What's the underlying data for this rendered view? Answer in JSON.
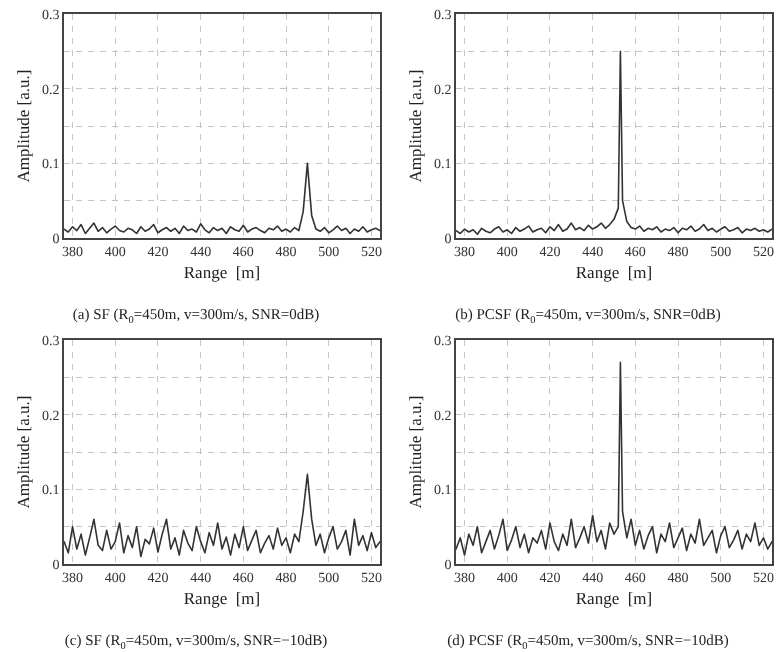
{
  "chart_data": [
    {
      "type": "line",
      "title": "(a) SF (R$_{0}$=450m, v=300m/s, SNR=0dB)",
      "xlabel": "Range  [m]",
      "ylabel": "Amplitude [a.u.]",
      "grid": true,
      "xlim": [
        376,
        524
      ],
      "xticks": [
        380,
        400,
        420,
        440,
        460,
        480,
        500,
        520
      ],
      "ylim": [
        0,
        0.3
      ],
      "yticks": [
        0,
        {
          "value": 0.05,
          "label": null
        },
        0.1,
        {
          "value": 0.15,
          "label": null
        },
        0.2,
        {
          "value": 0.25,
          "label": null
        },
        0.3
      ],
      "x": [
        376,
        378,
        380,
        382,
        384,
        386,
        388,
        390,
        392,
        394,
        396,
        398,
        400,
        402,
        404,
        406,
        408,
        410,
        412,
        414,
        416,
        418,
        420,
        422,
        424,
        426,
        428,
        430,
        432,
        434,
        436,
        438,
        440,
        442,
        444,
        446,
        448,
        450,
        452,
        454,
        456,
        458,
        460,
        462,
        464,
        466,
        468,
        470,
        472,
        474,
        476,
        478,
        480,
        482,
        484,
        486,
        488,
        490,
        492,
        494,
        496,
        498,
        500,
        502,
        504,
        506,
        508,
        510,
        512,
        514,
        516,
        518,
        520,
        522,
        524
      ],
      "series": [
        {
          "color": "#333333",
          "values": [
            0.012,
            0.008,
            0.015,
            0.01,
            0.018,
            0.006,
            0.013,
            0.02,
            0.009,
            0.014,
            0.007,
            0.012,
            0.016,
            0.01,
            0.008,
            0.013,
            0.011,
            0.006,
            0.015,
            0.009,
            0.012,
            0.018,
            0.007,
            0.011,
            0.014,
            0.009,
            0.013,
            0.006,
            0.016,
            0.01,
            0.012,
            0.008,
            0.019,
            0.011,
            0.007,
            0.014,
            0.01,
            0.013,
            0.006,
            0.015,
            0.011,
            0.009,
            0.017,
            0.008,
            0.012,
            0.014,
            0.01,
            0.007,
            0.013,
            0.011,
            0.016,
            0.009,
            0.012,
            0.008,
            0.014,
            0.01,
            0.035,
            0.1,
            0.03,
            0.012,
            0.009,
            0.014,
            0.007,
            0.011,
            0.016,
            0.01,
            0.013,
            0.006,
            0.012,
            0.009,
            0.015,
            0.008,
            0.011,
            0.013,
            0.01
          ]
        }
      ]
    },
    {
      "type": "line",
      "title": "(b) PCSF (R$_{0}$=450m, v=300m/s, SNR=0dB)",
      "xlabel": "Range  [m]",
      "ylabel": "Amplitude [a.u.]",
      "grid": true,
      "xlim": [
        376,
        524
      ],
      "xticks": [
        380,
        400,
        420,
        440,
        460,
        480,
        500,
        520
      ],
      "ylim": [
        0,
        0.3
      ],
      "yticks": [
        0,
        {
          "value": 0.05,
          "label": null
        },
        0.1,
        {
          "value": 0.15,
          "label": null
        },
        0.2,
        {
          "value": 0.25,
          "label": null
        },
        0.3
      ],
      "x": [
        376,
        378,
        380,
        382,
        384,
        386,
        388,
        390,
        392,
        394,
        396,
        398,
        400,
        402,
        404,
        406,
        408,
        410,
        412,
        414,
        416,
        418,
        420,
        422,
        424,
        426,
        428,
        430,
        432,
        434,
        436,
        438,
        440,
        442,
        444,
        446,
        448,
        450,
        452,
        453,
        454,
        456,
        458,
        460,
        462,
        464,
        466,
        468,
        470,
        472,
        474,
        476,
        478,
        480,
        482,
        484,
        486,
        488,
        490,
        492,
        494,
        496,
        498,
        500,
        502,
        504,
        506,
        508,
        510,
        512,
        514,
        516,
        518,
        520,
        522,
        524
      ],
      "series": [
        {
          "color": "#333333",
          "values": [
            0.01,
            0.006,
            0.012,
            0.008,
            0.011,
            0.005,
            0.013,
            0.009,
            0.007,
            0.012,
            0.015,
            0.008,
            0.011,
            0.006,
            0.014,
            0.009,
            0.012,
            0.016,
            0.008,
            0.011,
            0.013,
            0.007,
            0.015,
            0.01,
            0.018,
            0.009,
            0.012,
            0.02,
            0.011,
            0.014,
            0.01,
            0.017,
            0.012,
            0.015,
            0.02,
            0.013,
            0.018,
            0.025,
            0.04,
            0.25,
            0.05,
            0.022,
            0.014,
            0.012,
            0.016,
            0.009,
            0.013,
            0.011,
            0.015,
            0.008,
            0.012,
            0.01,
            0.014,
            0.007,
            0.013,
            0.011,
            0.016,
            0.009,
            0.012,
            0.018,
            0.01,
            0.013,
            0.008,
            0.012,
            0.015,
            0.009,
            0.011,
            0.014,
            0.007,
            0.012,
            0.01,
            0.013,
            0.009,
            0.011,
            0.008,
            0.012
          ]
        }
      ]
    },
    {
      "type": "line",
      "title": "(c) SF (R$_{0}$=450m, v=300m/s, SNR=−10dB)",
      "xlabel": "Range  [m]",
      "ylabel": "Amplitude [a.u.]",
      "grid": true,
      "xlim": [
        376,
        524
      ],
      "xticks": [
        380,
        400,
        420,
        440,
        460,
        480,
        500,
        520
      ],
      "ylim": [
        0,
        0.3
      ],
      "yticks": [
        0,
        {
          "value": 0.05,
          "label": null
        },
        0.1,
        {
          "value": 0.15,
          "label": null
        },
        0.2,
        {
          "value": 0.25,
          "label": null
        },
        0.3
      ],
      "x": [
        376,
        378,
        380,
        382,
        384,
        386,
        388,
        390,
        392,
        394,
        396,
        398,
        400,
        402,
        404,
        406,
        408,
        410,
        412,
        414,
        416,
        418,
        420,
        422,
        424,
        426,
        428,
        430,
        432,
        434,
        436,
        438,
        440,
        442,
        444,
        446,
        448,
        450,
        452,
        454,
        456,
        458,
        460,
        462,
        464,
        466,
        468,
        470,
        472,
        474,
        476,
        478,
        480,
        482,
        484,
        486,
        488,
        490,
        492,
        494,
        496,
        498,
        500,
        502,
        504,
        506,
        508,
        510,
        512,
        514,
        516,
        518,
        520,
        522,
        524
      ],
      "series": [
        {
          "color": "#333333",
          "values": [
            0.03,
            0.015,
            0.05,
            0.02,
            0.04,
            0.012,
            0.035,
            0.06,
            0.025,
            0.018,
            0.045,
            0.02,
            0.03,
            0.055,
            0.015,
            0.038,
            0.022,
            0.05,
            0.01,
            0.033,
            0.027,
            0.048,
            0.016,
            0.04,
            0.06,
            0.02,
            0.035,
            0.012,
            0.045,
            0.028,
            0.018,
            0.05,
            0.03,
            0.015,
            0.042,
            0.025,
            0.055,
            0.02,
            0.036,
            0.012,
            0.04,
            0.022,
            0.05,
            0.018,
            0.032,
            0.045,
            0.015,
            0.028,
            0.038,
            0.02,
            0.048,
            0.025,
            0.035,
            0.015,
            0.04,
            0.03,
            0.07,
            0.12,
            0.06,
            0.025,
            0.04,
            0.015,
            0.035,
            0.05,
            0.02,
            0.03,
            0.045,
            0.012,
            0.06,
            0.025,
            0.038,
            0.018,
            0.042,
            0.022,
            0.03
          ]
        }
      ]
    },
    {
      "type": "line",
      "title": "(d) PCSF (R$_{0}$=450m, v=300m/s, SNR=−10dB)",
      "xlabel": "Range  [m]",
      "ylabel": "Amplitude [a.u.]",
      "grid": true,
      "xlim": [
        376,
        524
      ],
      "xticks": [
        380,
        400,
        420,
        440,
        460,
        480,
        500,
        520
      ],
      "ylim": [
        0,
        0.3
      ],
      "yticks": [
        0,
        {
          "value": 0.05,
          "label": null
        },
        0.1,
        {
          "value": 0.15,
          "label": null
        },
        0.2,
        {
          "value": 0.25,
          "label": null
        },
        0.3
      ],
      "x": [
        376,
        378,
        380,
        382,
        384,
        386,
        388,
        390,
        392,
        394,
        396,
        398,
        400,
        402,
        404,
        406,
        408,
        410,
        412,
        414,
        416,
        418,
        420,
        422,
        424,
        426,
        428,
        430,
        432,
        434,
        436,
        438,
        440,
        442,
        444,
        446,
        448,
        450,
        452,
        453,
        454,
        456,
        458,
        460,
        462,
        464,
        466,
        468,
        470,
        472,
        474,
        476,
        478,
        480,
        482,
        484,
        486,
        488,
        490,
        492,
        494,
        496,
        498,
        500,
        502,
        504,
        506,
        508,
        510,
        512,
        514,
        516,
        518,
        520,
        522,
        524
      ],
      "series": [
        {
          "color": "#333333",
          "values": [
            0.02,
            0.035,
            0.012,
            0.04,
            0.025,
            0.05,
            0.015,
            0.03,
            0.045,
            0.02,
            0.038,
            0.06,
            0.018,
            0.032,
            0.05,
            0.022,
            0.04,
            0.015,
            0.035,
            0.028,
            0.045,
            0.02,
            0.055,
            0.03,
            0.018,
            0.04,
            0.025,
            0.06,
            0.022,
            0.035,
            0.05,
            0.028,
            0.065,
            0.03,
            0.045,
            0.02,
            0.055,
            0.04,
            0.05,
            0.27,
            0.07,
            0.035,
            0.06,
            0.025,
            0.045,
            0.02,
            0.038,
            0.05,
            0.015,
            0.04,
            0.03,
            0.055,
            0.022,
            0.035,
            0.048,
            0.018,
            0.04,
            0.028,
            0.06,
            0.025,
            0.035,
            0.045,
            0.015,
            0.038,
            0.05,
            0.022,
            0.032,
            0.045,
            0.02,
            0.04,
            0.03,
            0.055,
            0.025,
            0.035,
            0.02,
            0.03
          ]
        }
      ]
    }
  ]
}
